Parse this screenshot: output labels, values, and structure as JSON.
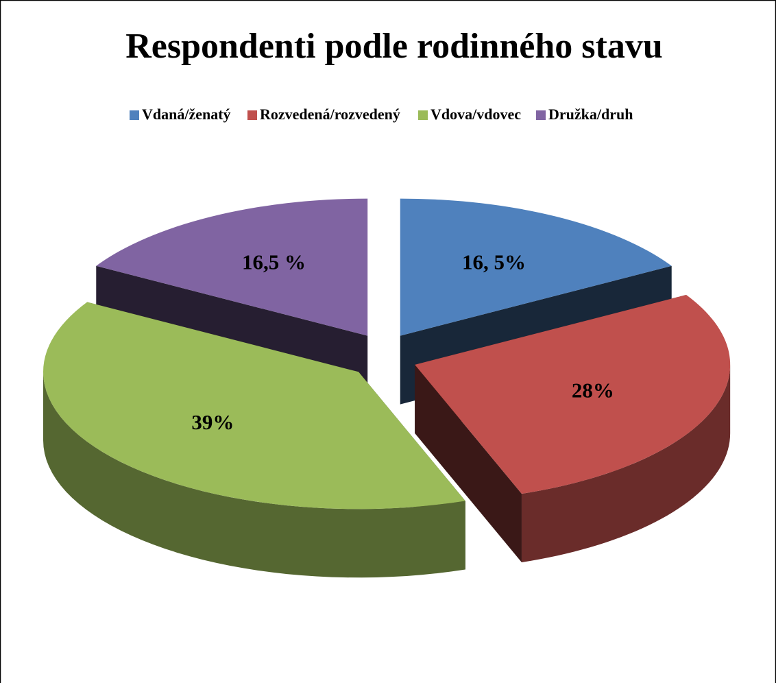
{
  "chart_data": {
    "type": "pie",
    "title": "Respondenti podle rodinného stavu",
    "categories": [
      "Vdaná/ženatý",
      "Rozvedená/rozvedený",
      "Vdova/vdovec",
      "Družka/druh"
    ],
    "values": [
      16.5,
      28,
      39,
      16.5
    ],
    "value_labels": [
      "16, 5%",
      "28%",
      "39%",
      "16,5 %"
    ],
    "colors": [
      "#4f81bd",
      "#c0504d",
      "#9bbb59",
      "#8064a2"
    ],
    "legend": "top"
  }
}
